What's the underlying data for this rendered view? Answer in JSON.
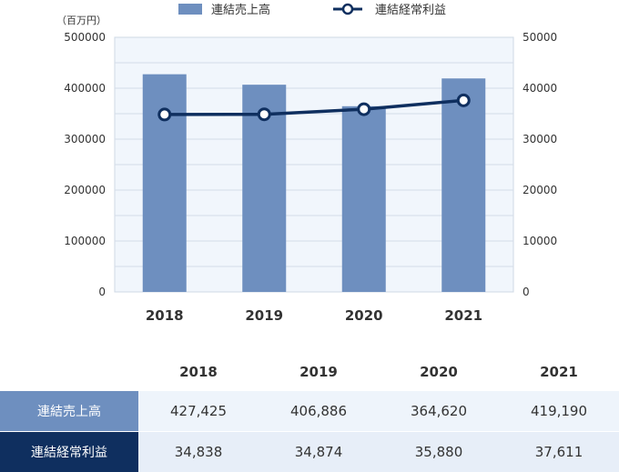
{
  "chart_data": {
    "type": "bar",
    "categories": [
      "2018",
      "2019",
      "2020",
      "2021"
    ],
    "unit_label": "（百万円）",
    "left_axis": {
      "ylim": [
        0,
        500000
      ],
      "ticks": [
        "500000",
        "400000",
        "300000",
        "200000",
        "100000",
        "0"
      ]
    },
    "right_axis": {
      "ylim": [
        0,
        50000
      ],
      "ticks": [
        "50000",
        "40000",
        "30000",
        "20000",
        "10000",
        "0"
      ]
    },
    "series": [
      {
        "name": "連結売上高",
        "type": "bar",
        "axis": "left",
        "values": [
          427425,
          406886,
          364620,
          419190
        ],
        "color": "#6e8fbf"
      },
      {
        "name": "連結経常利益",
        "type": "line",
        "axis": "right",
        "values": [
          34838,
          34874,
          35880,
          37611
        ],
        "color": "#0f2f5f"
      }
    ],
    "legend_placement": "top",
    "grid": true
  },
  "table": {
    "years": [
      "2018",
      "2019",
      "2020",
      "2021"
    ],
    "rows": [
      {
        "label": "連結売上高",
        "values": [
          "427,425",
          "406,886",
          "364,620",
          "419,190"
        ]
      },
      {
        "label": "連結経常利益",
        "values": [
          "34,838",
          "34,874",
          "35,880",
          "37,611"
        ]
      }
    ]
  },
  "colors": {
    "bar": "#6e8fbf",
    "line": "#0f2f5f",
    "plot_bg": "#f1f6fc",
    "grid": "#d4dce8"
  }
}
